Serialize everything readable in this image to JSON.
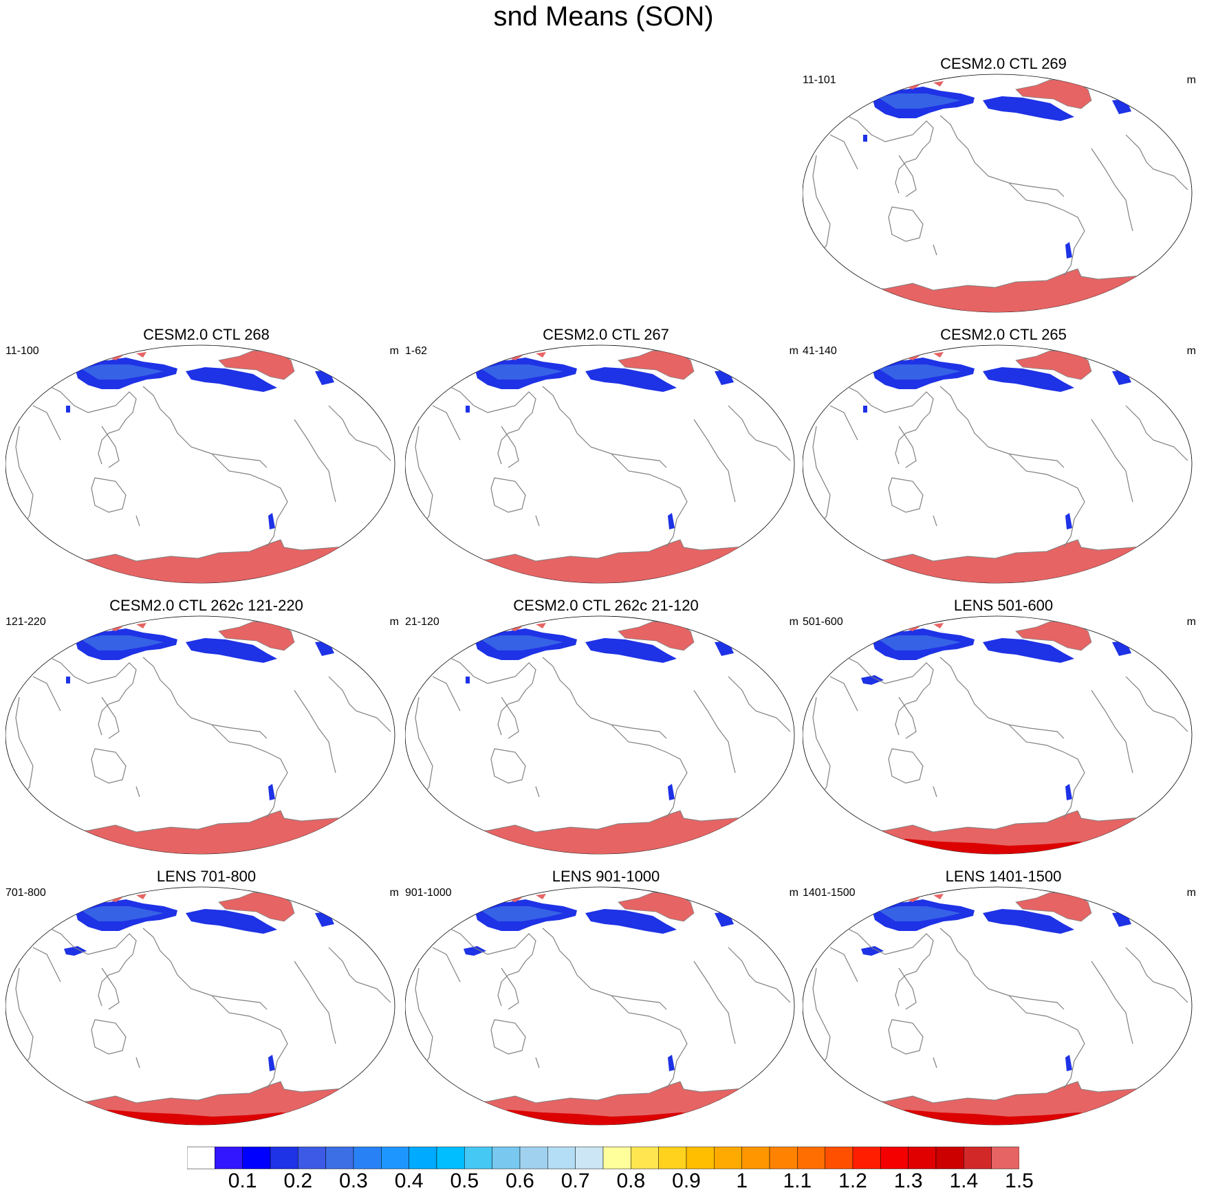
{
  "title": "snd Means (SON)",
  "panels": [
    {
      "title": "CESM2.0 CTL 269",
      "left_label": "11-101",
      "units": "m",
      "variant": "ctl"
    },
    {
      "title": "CESM2.0 CTL 268",
      "left_label": "11-100",
      "units": "m",
      "variant": "ctl"
    },
    {
      "title": "CESM2.0 CTL 267",
      "left_label": "1-62",
      "units": "m",
      "variant": "ctl"
    },
    {
      "title": "CESM2.0 CTL 265",
      "left_label": "41-140",
      "units": "m",
      "variant": "ctl"
    },
    {
      "title": "CESM2.0 CTL 262c 121-220",
      "left_label": "121-220",
      "units": "m",
      "variant": "ctl"
    },
    {
      "title": "CESM2.0 CTL 262c 21-120",
      "left_label": "21-120",
      "units": "m",
      "variant": "ctl"
    },
    {
      "title": "LENS 501-600",
      "left_label": "501-600",
      "units": "m",
      "variant": "lens"
    },
    {
      "title": "LENS 701-800",
      "left_label": "701-800",
      "units": "m",
      "variant": "lens"
    },
    {
      "title": "LENS 901-1000",
      "left_label": "901-1000",
      "units": "m",
      "variant": "lens"
    },
    {
      "title": "LENS 1401-1500",
      "left_label": "1401-1500",
      "units": "m",
      "variant": "lens"
    }
  ],
  "colorbar": {
    "labels": [
      "0.1",
      "0.2",
      "0.3",
      "0.4",
      "0.5",
      "0.6",
      "0.7",
      "0.8",
      "0.9",
      "1",
      "1.1",
      "1.2",
      "1.3",
      "1.4",
      "1.5"
    ],
    "colors": [
      "#ffffff",
      "#3216ff",
      "#0000ff",
      "#1e32e6",
      "#3c5ae6",
      "#3c6ee6",
      "#2882f5",
      "#1e96ff",
      "#00aaff",
      "#00beff",
      "#46c8f5",
      "#78c8f0",
      "#a0d2f0",
      "#b4def5",
      "#cce6f5",
      "#ffff9b",
      "#ffe650",
      "#ffd21e",
      "#ffbe00",
      "#ffaa00",
      "#ff9600",
      "#ff8200",
      "#ff6e00",
      "#ff5000",
      "#ff1e00",
      "#f50000",
      "#e10000",
      "#cd0000",
      "#d22828",
      "#e66464"
    ]
  },
  "colors": {
    "snow_light": "#1e32e6",
    "snow_mid": "#3c6ee6",
    "snow_deep": "#e66464",
    "snow_deepest": "#dc0000",
    "coast": "#808080"
  }
}
